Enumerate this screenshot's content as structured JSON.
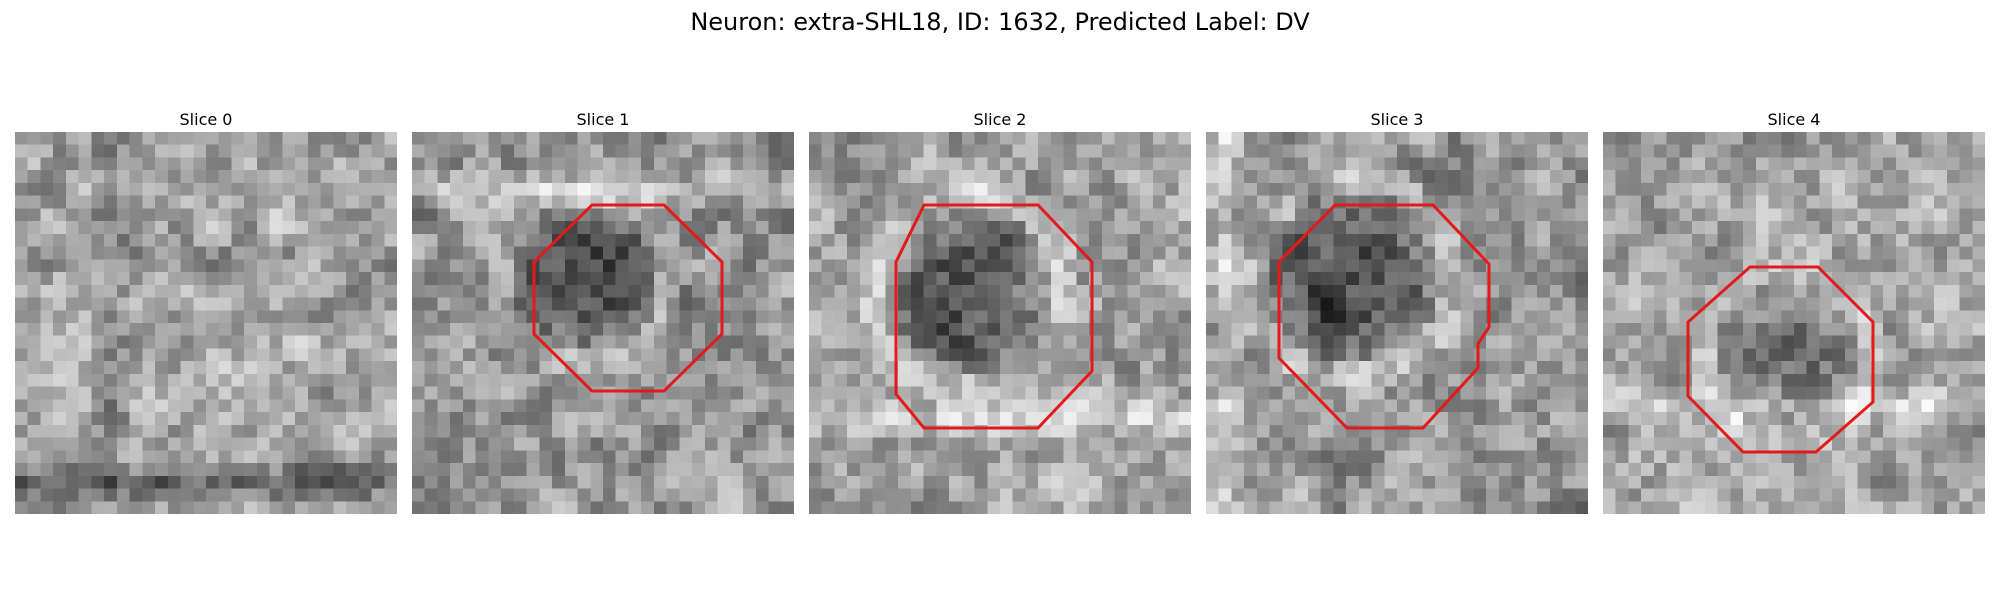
{
  "figure": {
    "title": "Neuron: extra-SHL18, ID: 1632, Predicted Label: DV"
  },
  "panels": [
    {
      "title": "Slice 0",
      "has_roi": false
    },
    {
      "title": "Slice 1",
      "has_roi": true
    },
    {
      "title": "Slice 2",
      "has_roi": true
    },
    {
      "title": "Slice 3",
      "has_roi": true
    },
    {
      "title": "Slice 4",
      "has_roi": true
    }
  ],
  "colors": {
    "roi_outline": "#e31a1c",
    "background": "#ffffff"
  }
}
